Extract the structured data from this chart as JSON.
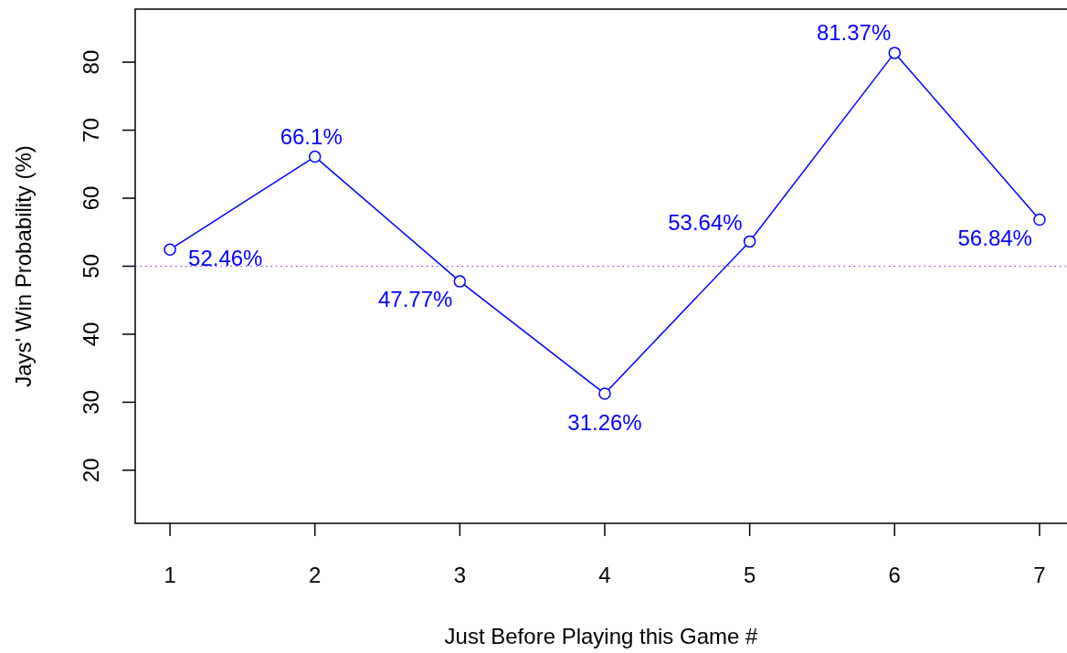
{
  "chart_data": {
    "type": "line",
    "xlabel": "Just Before Playing this Game #",
    "ylabel": "Jays' Win Probability (%)",
    "x": [
      1,
      2,
      3,
      4,
      5,
      6,
      7
    ],
    "series": [
      {
        "color": "#0000ff",
        "values": [
          52.46,
          66.1,
          47.77,
          31.26,
          53.64,
          81.37,
          56.84
        ],
        "value_labels": [
          "52.46%",
          "66.1%",
          "47.77%",
          "31.26%",
          "53.64%",
          "81.37%",
          "56.84%"
        ]
      }
    ],
    "xlim": [
      0.76,
      7.24
    ],
    "ylim": [
      12.2,
      87.8
    ],
    "xticks": [
      1,
      2,
      3,
      4,
      5,
      6,
      7
    ],
    "yticks": [
      20,
      30,
      40,
      50,
      60,
      70,
      80
    ],
    "marker": "circle",
    "line_style": "solid",
    "grid": false,
    "ref_lines": [
      {
        "axis": "y",
        "value": 50,
        "color": "#a020f0",
        "line_style": "dotted"
      }
    ]
  }
}
